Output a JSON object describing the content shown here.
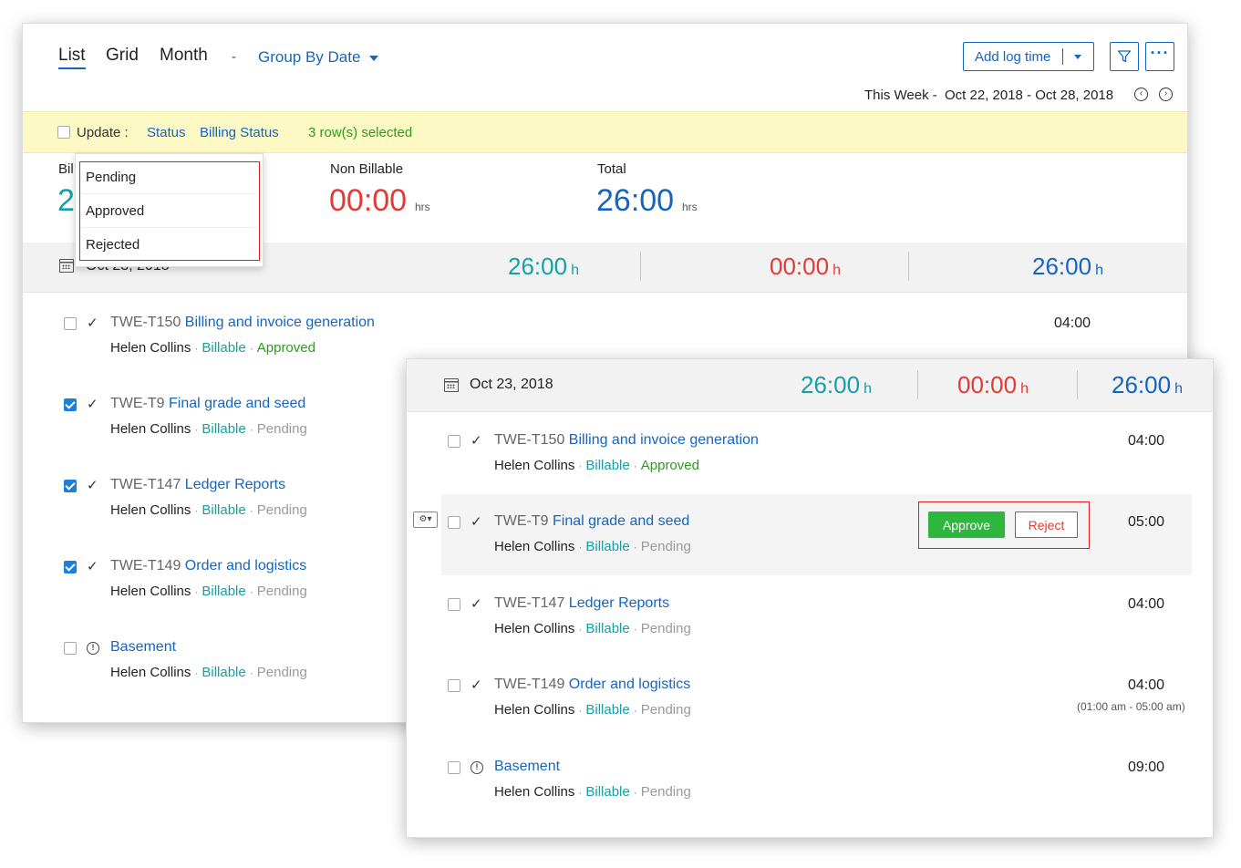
{
  "views": {
    "list": "List",
    "grid": "Grid",
    "month": "Month",
    "separator": "-",
    "group_by": "Group By Date"
  },
  "toolbar": {
    "add_log_time": "Add log time",
    "filter_icon": "filter-icon",
    "more_icon": "more-icon"
  },
  "period": {
    "label": "This Week -",
    "range": "Oct 22, 2018 - Oct 28, 2018"
  },
  "update_bar": {
    "label": "Update :",
    "status": "Status",
    "billing_status": "Billing Status",
    "selected": "3  row(s) selected"
  },
  "status_dropdown": {
    "items": [
      "Pending",
      "Approved",
      "Rejected"
    ]
  },
  "summary": {
    "billable_label_partial": "Bil",
    "billable_value_partial": "2",
    "non_billable_label": "Non Billable",
    "non_billable_value": "00:00",
    "total_label": "Total",
    "total_value": "26:00",
    "unit": "hrs"
  },
  "date_group": {
    "date": "Oct 23, 2018",
    "billable": "26:00",
    "non_billable": "00:00",
    "total": "26:00",
    "h": "h"
  },
  "back_rows": [
    {
      "id": "TWE-T150",
      "title": "Billing and invoice generation",
      "user": "Helen Collins",
      "billing": "Billable",
      "status": "Approved",
      "duration": "04:00"
    },
    {
      "id": "TWE-T9",
      "title": "Final grade and seed",
      "user": "Helen Collins",
      "billing": "Billable",
      "status": "Pending"
    },
    {
      "id": "TWE-T147",
      "title": "Ledger Reports",
      "user": "Helen Collins",
      "billing": "Billable",
      "status": "Pending"
    },
    {
      "id": "TWE-T149",
      "title": "Order and logistics",
      "user": "Helen Collins",
      "billing": "Billable",
      "status": "Pending"
    },
    {
      "id": "",
      "title": "Basement",
      "user": "Helen Collins",
      "billing": "Billable",
      "status": "Pending"
    }
  ],
  "front_rows": [
    {
      "id": "TWE-T150",
      "title": "Billing and invoice generation",
      "user": "Helen Collins",
      "billing": "Billable",
      "status": "Approved",
      "duration": "04:00"
    },
    {
      "id": "TWE-T9",
      "title": "Final grade and seed",
      "user": "Helen Collins",
      "billing": "Billable",
      "status": "Pending",
      "duration": "05:00"
    },
    {
      "id": "TWE-T147",
      "title": "Ledger Reports",
      "user": "Helen Collins",
      "billing": "Billable",
      "status": "Pending",
      "duration": "04:00"
    },
    {
      "id": "TWE-T149",
      "title": "Order and logistics",
      "user": "Helen Collins",
      "billing": "Billable",
      "status": "Pending",
      "duration": "04:00",
      "time_range": "(01:00 am - 05:00  am)"
    },
    {
      "id": "",
      "title": "Basement",
      "user": "Helen Collins",
      "billing": "Billable",
      "status": "Pending",
      "duration": "09:00"
    }
  ],
  "actions": {
    "approve": "Approve",
    "reject": "Reject"
  },
  "colors": {
    "primary": "#1565c0",
    "billable": "#16a0a5",
    "non_billable": "#e53935",
    "approved": "#2e9a1f",
    "approve_button": "#2eb73e",
    "highlight": "#e02020",
    "update_bar": "#fcf9c5"
  }
}
